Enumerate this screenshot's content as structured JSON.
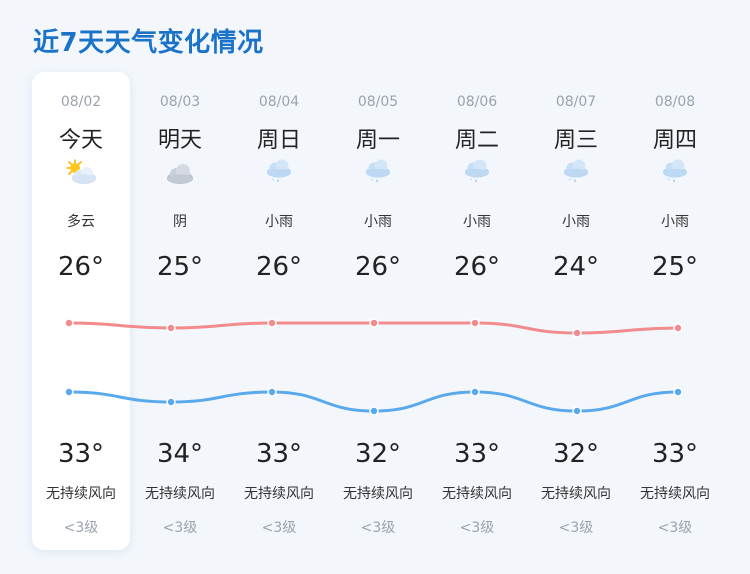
{
  "page_title": "近7天天气变化情况",
  "days": [
    {
      "date": "08/02",
      "day": "今天",
      "icon": "partly-cloudy-icon",
      "condition": "多云",
      "temp_top": "26°",
      "temp_bottom": "33°",
      "wind_dir": "无持续风向",
      "wind_level": "<3级"
    },
    {
      "date": "08/03",
      "day": "明天",
      "icon": "overcast-cloud-icon",
      "condition": "阴",
      "temp_top": "25°",
      "temp_bottom": "34°",
      "wind_dir": "无持续风向",
      "wind_level": "<3级"
    },
    {
      "date": "08/04",
      "day": "周日",
      "icon": "light-rain-icon",
      "condition": "小雨",
      "temp_top": "26°",
      "temp_bottom": "33°",
      "wind_dir": "无持续风向",
      "wind_level": "<3级"
    },
    {
      "date": "08/05",
      "day": "周一",
      "icon": "light-rain-icon",
      "condition": "小雨",
      "temp_top": "26°",
      "temp_bottom": "32°",
      "wind_dir": "无持续风向",
      "wind_level": "<3级"
    },
    {
      "date": "08/06",
      "day": "周二",
      "icon": "light-rain-icon",
      "condition": "小雨",
      "temp_top": "26°",
      "temp_bottom": "33°",
      "wind_dir": "无持续风向",
      "wind_level": "<3级"
    },
    {
      "date": "08/07",
      "day": "周三",
      "icon": "light-rain-icon",
      "condition": "小雨",
      "temp_top": "24°",
      "temp_bottom": "32°",
      "wind_dir": "无持续风向",
      "wind_level": "<3级"
    },
    {
      "date": "08/08",
      "day": "周四",
      "icon": "light-rain-icon",
      "condition": "小雨",
      "temp_top": "25°",
      "temp_bottom": "33°",
      "wind_dir": "无持续风向",
      "wind_level": "<3级"
    }
  ],
  "colors": {
    "title": "#1a73c9",
    "curve_top": "#f28c8c",
    "curve_bottom": "#5aa9ec"
  }
}
